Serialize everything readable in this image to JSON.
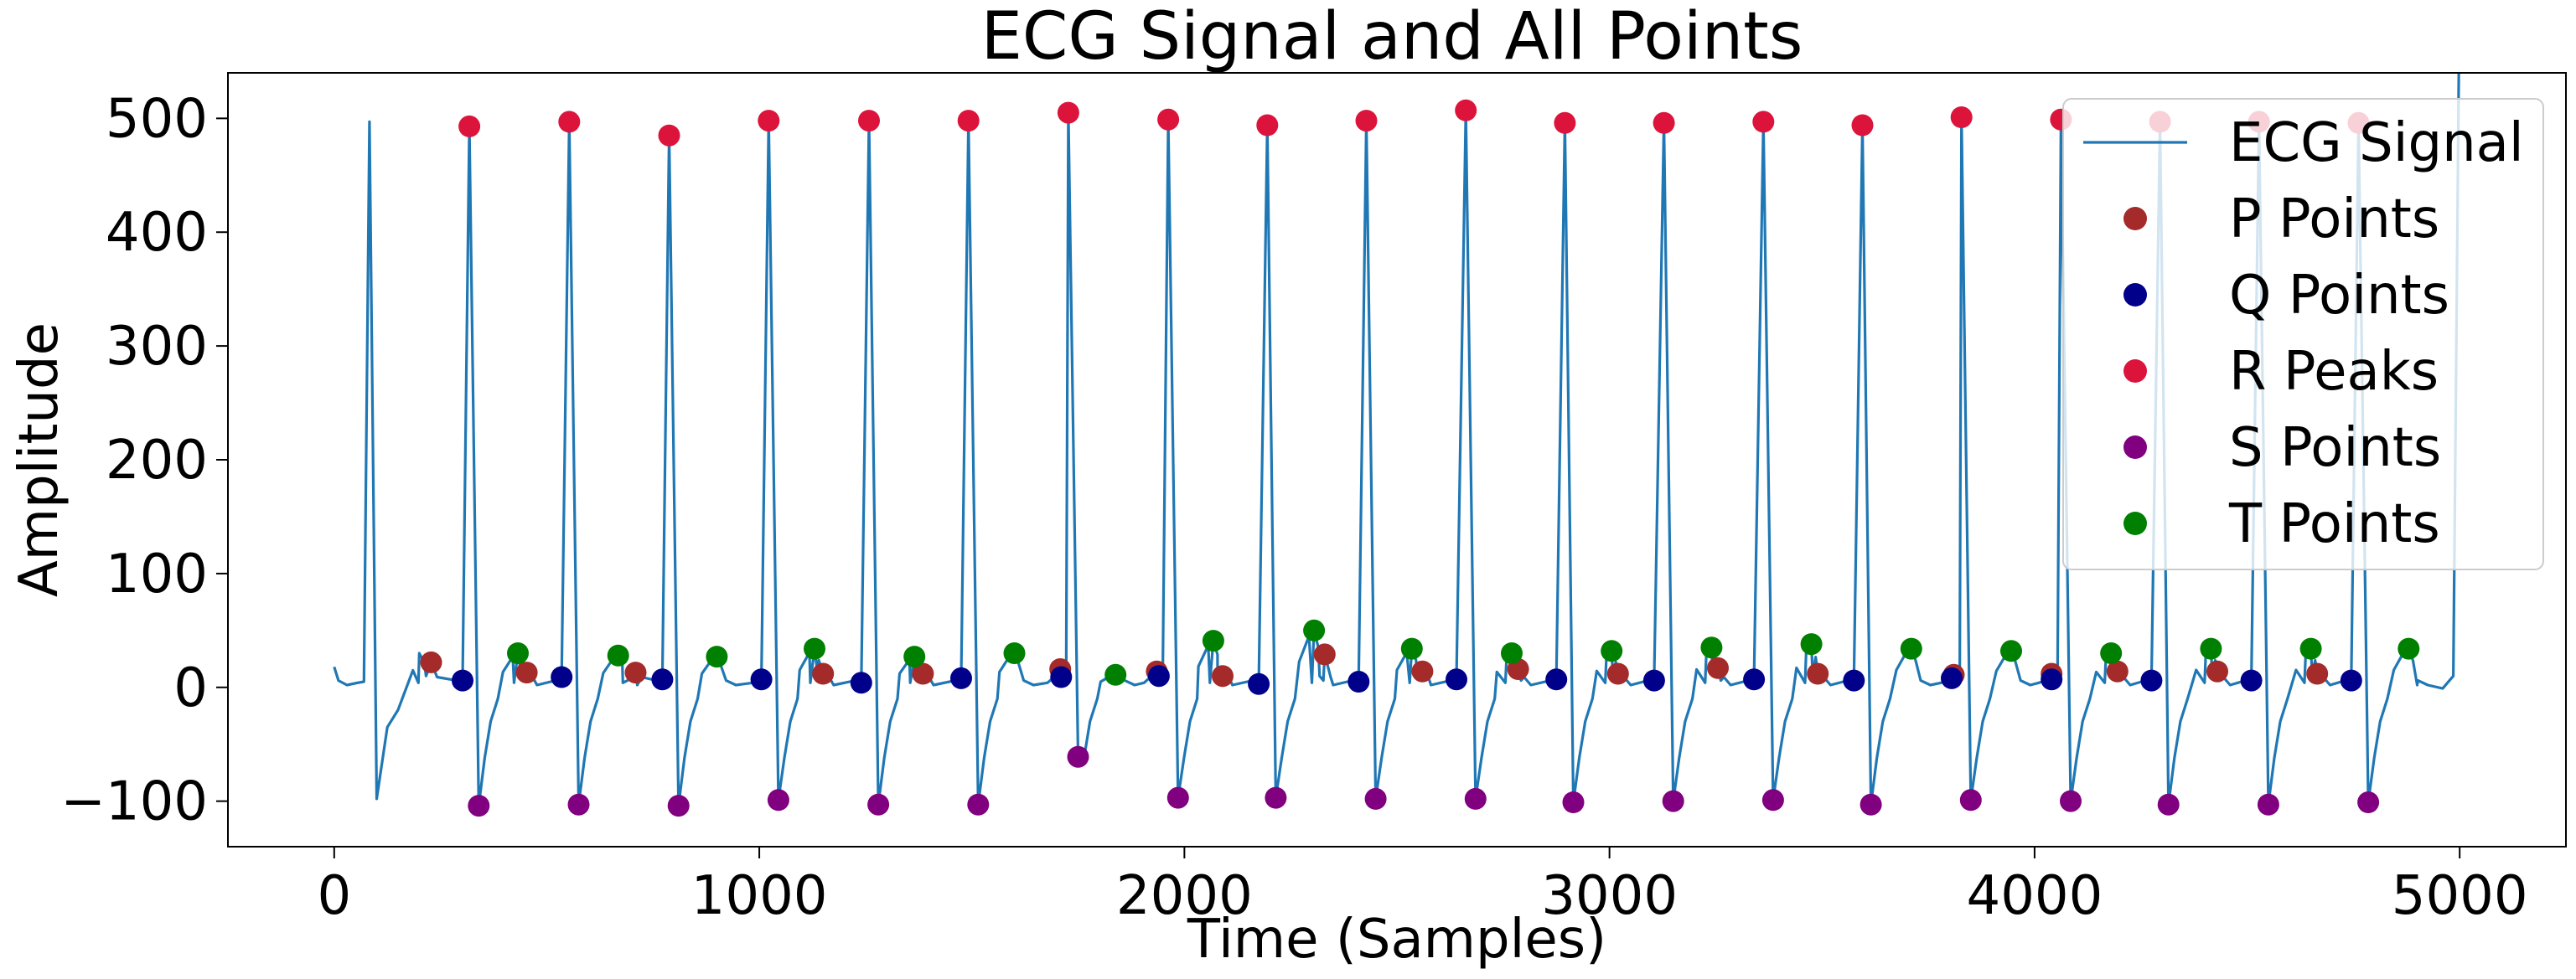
{
  "chart_data": {
    "type": "line",
    "title": "ECG Signal and All Points",
    "xlabel": "Time (Samples)",
    "ylabel": "Amplitude",
    "xlim": [
      -250,
      5250
    ],
    "ylim": [
      -140,
      540
    ],
    "xticks": [
      0,
      1000,
      2000,
      3000,
      4000,
      5000
    ],
    "yticks": [
      -100,
      0,
      100,
      200,
      300,
      400,
      500
    ],
    "xtick_labels": [
      "0",
      "1000",
      "2000",
      "3000",
      "4000",
      "5000"
    ],
    "ytick_labels": [
      "−100",
      "0",
      "100",
      "200",
      "300",
      "400",
      "500"
    ],
    "grid": false,
    "legend_position": "top-right",
    "line_series": {
      "name": "ECG Signal",
      "color": "#1f77b4",
      "first_beat_r": 83,
      "first_beat_amplitude": 497,
      "start_sample": 0,
      "end_sample": 4998
    },
    "series": [
      {
        "name": "P Points",
        "color": "#a52a2a",
        "x": [
          228,
          453,
          709,
          1150,
          1385,
          1708,
          1935,
          2090,
          2330,
          2560,
          2785,
          3020,
          3255,
          3490,
          3810,
          4040,
          4195,
          4430,
          4665
        ],
        "y": [
          22,
          13,
          13,
          12,
          12,
          16,
          14,
          10,
          29,
          14,
          16,
          12,
          17,
          12,
          11,
          12,
          14,
          14,
          12
        ]
      },
      {
        "name": "Q Points",
        "color": "#00008b",
        "x": [
          302,
          535,
          772,
          1005,
          1240,
          1475,
          1710,
          1940,
          2175,
          2410,
          2640,
          2875,
          3105,
          3340,
          3575,
          3805,
          4040,
          4275,
          4510,
          4745
        ],
        "y": [
          6,
          9,
          7,
          7,
          4,
          8,
          9,
          10,
          3,
          5,
          7,
          7,
          6,
          7,
          6,
          8,
          7,
          6,
          6,
          6
        ]
      },
      {
        "name": "R Peaks",
        "color": "#dc143c",
        "x": [
          318,
          553,
          788,
          1022,
          1258,
          1492,
          1727,
          1962,
          2195,
          2428,
          2662,
          2895,
          3128,
          3362,
          3595,
          3828,
          4062,
          4295,
          4528,
          4762
        ],
        "y": [
          493,
          497,
          485,
          498,
          498,
          498,
          505,
          499,
          494,
          498,
          507,
          496,
          496,
          497,
          494,
          501,
          499,
          497,
          497,
          496
        ]
      },
      {
        "name": "S Points",
        "color": "#800080",
        "x": [
          340,
          575,
          810,
          1045,
          1280,
          1515,
          1750,
          1985,
          2215,
          2450,
          2685,
          2915,
          3150,
          3385,
          3615,
          3850,
          4085,
          4315,
          4550,
          4785
        ],
        "y": [
          -104,
          -103,
          -104,
          -99,
          -103,
          -103,
          -61,
          -97,
          -97,
          -98,
          -98,
          -101,
          -100,
          -99,
          -103,
          -99,
          -100,
          -103,
          -103,
          -101
        ]
      },
      {
        "name": "T Points",
        "color": "#008000",
        "x": [
          432,
          668,
          900,
          1130,
          1365,
          1600,
          1838,
          2068,
          2305,
          2535,
          2770,
          3005,
          3240,
          3475,
          3710,
          3945,
          4180,
          4415,
          4650,
          4880
        ],
        "y": [
          30,
          28,
          27,
          34,
          27,
          30,
          11,
          41,
          50,
          34,
          30,
          32,
          35,
          38,
          34,
          32,
          30,
          34,
          34,
          34
        ]
      }
    ]
  }
}
